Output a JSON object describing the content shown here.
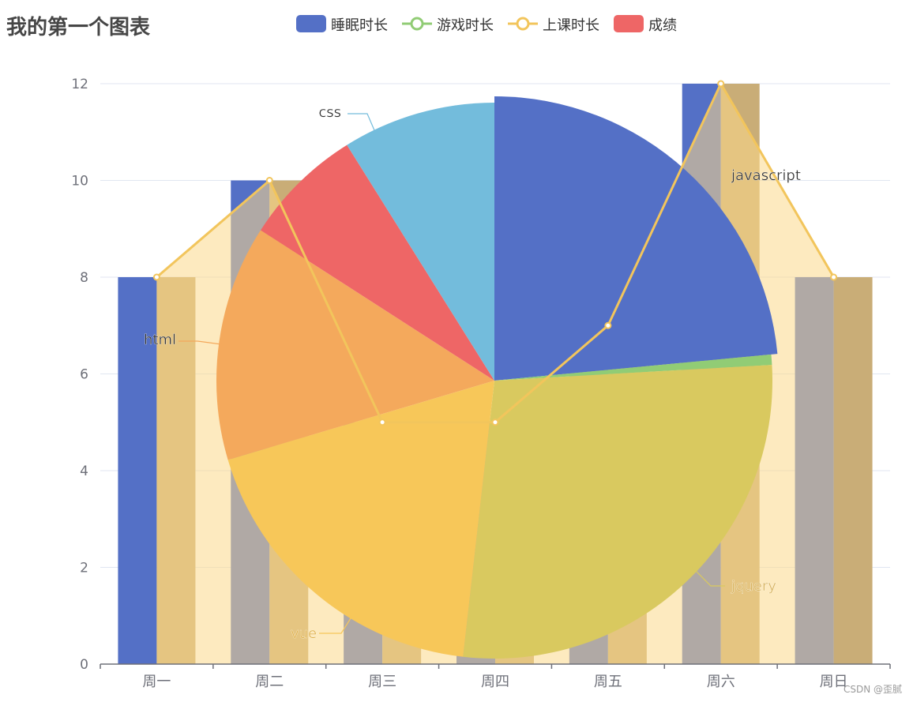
{
  "title": "我的第一个图表",
  "watermark": "CSDN @歪腻",
  "legend": [
    {
      "label": "睡眠时长",
      "kind": "bar",
      "color": "#5470c6"
    },
    {
      "label": "游戏时长",
      "kind": "line",
      "color": "#91cc75"
    },
    {
      "label": "上课时长",
      "kind": "line",
      "color": "#f2c55c"
    },
    {
      "label": "成绩",
      "kind": "bar",
      "color": "#ee6666"
    }
  ],
  "chart_data": {
    "type": "bar",
    "categories": [
      "周一",
      "周二",
      "周三",
      "周四",
      "周五",
      "周六",
      "周日"
    ],
    "ylim": [
      0,
      12
    ],
    "y_ticks": [
      0,
      2,
      4,
      6,
      8,
      10,
      12
    ],
    "grid": true,
    "series": [
      {
        "name": "睡眠时长",
        "type": "bar",
        "color": "#5470c6",
        "values": [
          8,
          10,
          5,
          5,
          7,
          12,
          8
        ]
      },
      {
        "name": "上课时长",
        "type": "bar",
        "color": "#c9ad77",
        "values": [
          8,
          10,
          5,
          5,
          7,
          12,
          8
        ]
      },
      {
        "name": "上课时长",
        "type": "area",
        "color": "#f2c55c",
        "fill": "#fbd88b",
        "values": [
          8,
          10,
          5,
          5,
          7,
          12,
          8
        ]
      }
    ],
    "pie": {
      "type": "pie",
      "slices": [
        {
          "name": "javascript",
          "value": 23.5,
          "color": "#5470c6"
        },
        {
          "name": "",
          "value": 0.6,
          "color": "#91cc75"
        },
        {
          "name": "jquery",
          "value": 27.7,
          "color": "#d9c95f"
        },
        {
          "name": "vue",
          "value": 18.6,
          "color": "#f7c759"
        },
        {
          "name": "html",
          "value": 13.7,
          "color": "#f4a95c"
        },
        {
          "name": "",
          "value": 7.0,
          "color": "#ee6666"
        },
        {
          "name": "css",
          "value": 8.9,
          "color": "#73bcdc"
        }
      ],
      "labels": [
        "css",
        "javascript",
        "html",
        "jquery",
        "vue"
      ]
    }
  }
}
